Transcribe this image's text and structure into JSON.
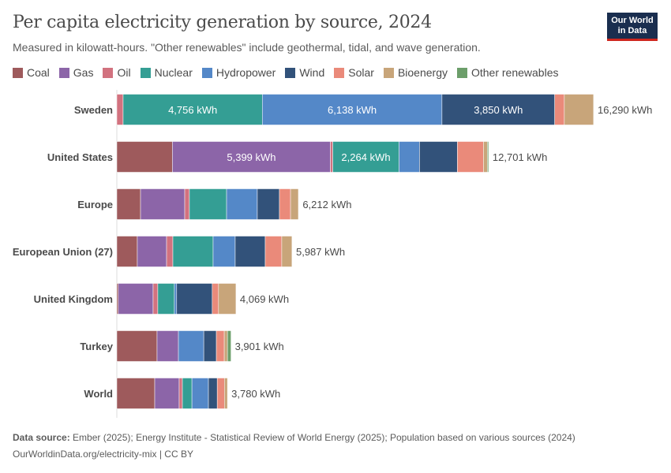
{
  "header": {
    "title": "Per capita electricity generation by source, 2024",
    "subtitle": "Measured in kilowatt-hours. \"Other renewables\" include geothermal, tidal, and wave generation.",
    "logo": "Our World in Data"
  },
  "footer": {
    "source_label": "Data source:",
    "source": " Ember (2025); Energy Institute - Statistical Review of World Energy (2025); Population based on various sources (2024)",
    "link": "OurWorldinData.org/electricity-mix | CC BY"
  },
  "chart_data": {
    "type": "bar",
    "orientation": "horizontal",
    "stacked": true,
    "unit": "kWh",
    "legend_position": "top",
    "grid": false,
    "categories": [
      "Sweden",
      "United States",
      "Europe",
      "European Union (27)",
      "United Kingdom",
      "Turkey",
      "World"
    ],
    "totals": [
      16290,
      12701,
      6212,
      5987,
      4069,
      3901,
      3780
    ],
    "total_labels": [
      "16,290 kWh",
      "12,701 kWh",
      "6,212 kWh",
      "5,987 kWh",
      "4,069 kWh",
      "3,901 kWh",
      "3,780 kWh"
    ],
    "series": [
      {
        "name": "Coal",
        "color": "#9e5a5c",
        "values": [
          0,
          1898,
          810,
          700,
          50,
          1375,
          1295
        ]
      },
      {
        "name": "Gas",
        "color": "#8c65a8",
        "values": [
          0,
          5399,
          1510,
          1000,
          1190,
          730,
          835
        ]
      },
      {
        "name": "Oil",
        "color": "#d2727f",
        "values": [
          215,
          80,
          160,
          215,
          160,
          0,
          110
        ]
      },
      {
        "name": "Nuclear",
        "color": "#349e94",
        "values": [
          4756,
          2264,
          1270,
          1375,
          565,
          0,
          325
        ]
      },
      {
        "name": "Hydropower",
        "color": "#5488c8",
        "values": [
          6138,
          700,
          1050,
          755,
          80,
          865,
          565
        ]
      },
      {
        "name": "Wind",
        "color": "#32527a",
        "values": [
          3850,
          1295,
          755,
          1025,
          1215,
          430,
          300
        ]
      },
      {
        "name": "Solar",
        "color": "#ea8a7a",
        "values": [
          330,
          890,
          380,
          565,
          215,
          270,
          245
        ]
      },
      {
        "name": "Bioenergy",
        "color": "#c8a57a",
        "values": [
          1000,
          135,
          270,
          350,
          595,
          110,
          105
        ]
      },
      {
        "name": "Other renewables",
        "color": "#6c9e6a",
        "values": [
          1,
          40,
          7,
          2,
          0,
          120,
          0
        ]
      }
    ],
    "segment_labels": {
      "Sweden": {
        "Nuclear": "4,756 kWh",
        "Hydropower": "6,138 kWh",
        "Wind": "3,850 kWh"
      },
      "United States": {
        "Gas": "5,399 kWh",
        "Nuclear": "2,264 kWh"
      }
    }
  }
}
